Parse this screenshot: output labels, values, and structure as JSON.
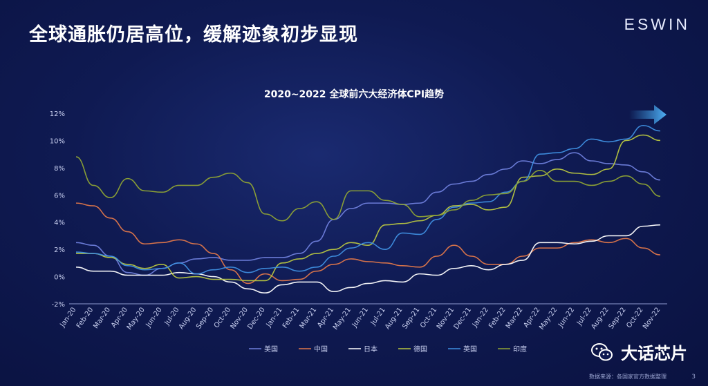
{
  "slide": {
    "title": "全球通胀仍居高位，缓解迹象初步显现",
    "brand": "ESWIN",
    "page": "3"
  },
  "watermark": {
    "text": "大话芯片",
    "icon": "wechat-icon"
  },
  "footer": {
    "source": "数据来源：各国家官方数据整理"
  },
  "colors": {
    "background": "#0f1a52",
    "arrow": "#3a9de8"
  },
  "chart_data": {
    "type": "line",
    "title": "2020~2022 全球前六大经济体CPI趋势",
    "xlabel": "",
    "ylabel": "",
    "ylim": [
      -2,
      12
    ],
    "yticks": [
      "12%",
      "10%",
      "8%",
      "6%",
      "4%",
      "2%",
      "0%",
      "-2%"
    ],
    "grid": false,
    "legend_position": "bottom",
    "categories": [
      "Jan-20",
      "Feb-20",
      "Mar-20",
      "Apr-20",
      "May-20",
      "Jun-20",
      "Jul-20",
      "Aug-20",
      "Sep-20",
      "Oct-20",
      "Nov-20",
      "Dec-20",
      "Jan-21",
      "Feb-21",
      "Mar-21",
      "Apr-21",
      "May-21",
      "Jun-21",
      "Jul-21",
      "Aug-21",
      "Sep-21",
      "Oct-21",
      "Nov-21",
      "Dec-21",
      "Jan-22",
      "Feb-22",
      "Mar-22",
      "Apr-22",
      "May-22",
      "Jun-22",
      "Jul-22",
      "Aug-22",
      "Sep-22",
      "Oct-22",
      "Nov-22"
    ],
    "series": [
      {
        "name": "美国",
        "color": "#6f7fdc",
        "values": [
          2.5,
          2.3,
          1.5,
          0.3,
          0.1,
          0.6,
          1.0,
          1.3,
          1.4,
          1.2,
          1.2,
          1.4,
          1.4,
          1.7,
          2.6,
          4.2,
          5.0,
          5.4,
          5.4,
          5.3,
          5.4,
          6.2,
          6.8,
          7.0,
          7.5,
          7.9,
          8.5,
          8.3,
          8.6,
          9.1,
          8.5,
          8.3,
          8.2,
          7.7,
          7.1
        ]
      },
      {
        "name": "中国",
        "color": "#e0774a",
        "values": [
          5.4,
          5.2,
          4.3,
          3.3,
          2.4,
          2.5,
          2.7,
          2.4,
          1.7,
          0.5,
          -0.5,
          0.2,
          -0.3,
          -0.2,
          0.4,
          0.9,
          1.3,
          1.1,
          1.0,
          0.8,
          0.7,
          1.5,
          2.3,
          1.5,
          0.9,
          0.9,
          1.5,
          2.1,
          2.1,
          2.5,
          2.7,
          2.5,
          2.8,
          2.1,
          1.6
        ]
      },
      {
        "name": "日本",
        "color": "#ffffff",
        "values": [
          0.7,
          0.4,
          0.4,
          0.1,
          0.1,
          0.1,
          0.3,
          0.2,
          0.0,
          -0.4,
          -0.9,
          -1.2,
          -0.6,
          -0.4,
          -0.4,
          -1.1,
          -0.8,
          -0.5,
          -0.3,
          -0.4,
          0.2,
          0.1,
          0.6,
          0.8,
          0.5,
          0.9,
          1.2,
          2.5,
          2.5,
          2.4,
          2.6,
          3.0,
          3.0,
          3.7,
          3.8
        ]
      },
      {
        "name": "德国",
        "color": "#b8c640",
        "values": [
          1.7,
          1.7,
          1.4,
          0.9,
          0.6,
          0.9,
          -0.1,
          0.0,
          -0.2,
          -0.2,
          -0.3,
          -0.3,
          1.0,
          1.3,
          1.7,
          2.0,
          2.5,
          2.3,
          3.8,
          3.9,
          4.1,
          4.5,
          5.2,
          5.3,
          4.9,
          5.1,
          7.3,
          7.4,
          7.9,
          7.6,
          7.5,
          7.9,
          10.0,
          10.4,
          10.0
        ]
      },
      {
        "name": "英国",
        "color": "#3f8fe0",
        "values": [
          1.8,
          1.7,
          1.5,
          0.8,
          0.5,
          0.6,
          1.0,
          0.2,
          0.5,
          0.7,
          0.3,
          0.6,
          0.7,
          0.4,
          0.7,
          1.5,
          2.1,
          2.5,
          2.0,
          3.2,
          3.1,
          4.2,
          5.1,
          5.4,
          5.5,
          6.2,
          7.0,
          9.0,
          9.1,
          9.4,
          10.1,
          9.9,
          10.1,
          11.1,
          10.7
        ]
      },
      {
        "name": "印度",
        "color": "#8fa434",
        "values": [
          8.8,
          6.7,
          5.8,
          7.2,
          6.3,
          6.2,
          6.7,
          6.7,
          7.3,
          7.6,
          6.9,
          4.6,
          4.1,
          5.0,
          5.5,
          4.2,
          6.3,
          6.3,
          5.6,
          5.3,
          4.4,
          4.5,
          4.9,
          5.6,
          6.0,
          6.1,
          7.0,
          7.8,
          7.0,
          7.0,
          6.7,
          7.0,
          7.4,
          6.8,
          5.9
        ]
      }
    ]
  }
}
